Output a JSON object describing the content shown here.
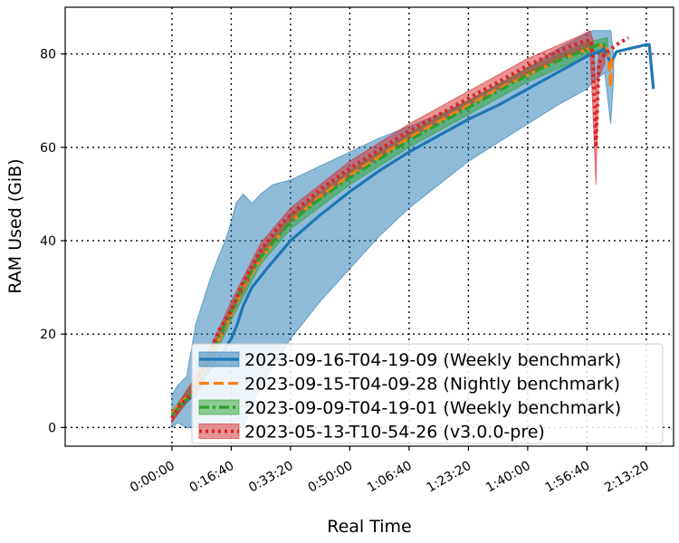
{
  "chart_data": {
    "type": "line",
    "xlabel": "Real Time",
    "ylabel": "RAM Used (GiB)",
    "x_unit": "seconds",
    "xlim": [
      -1800,
      8460
    ],
    "ylim": [
      -4,
      90
    ],
    "grid": true,
    "legend_position": "lower-right",
    "x_ticks": [
      {
        "value": 0,
        "label": "0:00:00"
      },
      {
        "value": 1000,
        "label": "0:16:40"
      },
      {
        "value": 2000,
        "label": "0:33:20"
      },
      {
        "value": 3000,
        "label": "0:50:00"
      },
      {
        "value": 4000,
        "label": "1:06:40"
      },
      {
        "value": 5000,
        "label": "1:23:20"
      },
      {
        "value": 6000,
        "label": "1:40:00"
      },
      {
        "value": 7000,
        "label": "1:56:40"
      },
      {
        "value": 8000,
        "label": "2:13:20"
      }
    ],
    "y_ticks": [
      0,
      20,
      40,
      60,
      80
    ],
    "series": [
      {
        "name": "2023-09-16-T04-19-09 (Weekly benchmark)",
        "color": "#1f77b4",
        "line_style": "solid",
        "points": [
          [
            0,
            3
          ],
          [
            150,
            5
          ],
          [
            400,
            7
          ],
          [
            550,
            11
          ],
          [
            800,
            15
          ],
          [
            1000,
            19
          ],
          [
            1100,
            22
          ],
          [
            1200,
            26
          ],
          [
            1350,
            30
          ],
          [
            1600,
            34
          ],
          [
            1800,
            37
          ],
          [
            2000,
            40
          ],
          [
            2500,
            45.5
          ],
          [
            3000,
            50.5
          ],
          [
            3500,
            55
          ],
          [
            4000,
            59
          ],
          [
            4500,
            62.5
          ],
          [
            5000,
            66
          ],
          [
            5500,
            69
          ],
          [
            6000,
            72.5
          ],
          [
            6500,
            76
          ],
          [
            7000,
            79.5
          ],
          [
            7300,
            81
          ],
          [
            7400,
            78
          ],
          [
            7500,
            80.5
          ],
          [
            8000,
            82
          ],
          [
            8050,
            82
          ],
          [
            8120,
            72.5
          ]
        ],
        "band": [
          [
            0,
            7,
            0
          ],
          [
            100,
            9,
            1
          ],
          [
            250,
            11,
            0
          ],
          [
            400,
            22,
            0
          ],
          [
            500,
            26,
            0
          ],
          [
            650,
            32,
            0
          ],
          [
            800,
            37,
            0
          ],
          [
            900,
            40,
            0
          ],
          [
            1000,
            44,
            0
          ],
          [
            1080,
            48,
            0
          ],
          [
            1200,
            50,
            0
          ],
          [
            1350,
            48,
            4
          ],
          [
            1500,
            50,
            9
          ],
          [
            1700,
            52,
            13
          ],
          [
            2000,
            53,
            19
          ],
          [
            2500,
            56,
            27
          ],
          [
            3000,
            59,
            34
          ],
          [
            3500,
            62,
            41
          ],
          [
            4000,
            64.5,
            47
          ],
          [
            4500,
            67,
            52
          ],
          [
            5000,
            70,
            57
          ],
          [
            5500,
            73.5,
            61
          ],
          [
            6000,
            77,
            65
          ],
          [
            6500,
            81,
            69
          ],
          [
            7000,
            84.5,
            72.5
          ],
          [
            7100,
            85,
            74
          ],
          [
            7300,
            85,
            76
          ],
          [
            7400,
            85,
            65
          ],
          [
            7450,
            80,
            75
          ]
        ]
      },
      {
        "name": "2023-09-15-T04-09-28 (Nightly benchmark)",
        "color": "#ff7f0e",
        "line_style": "dashed",
        "points": [
          [
            0,
            3
          ],
          [
            150,
            5.5
          ],
          [
            400,
            7.5
          ],
          [
            600,
            14
          ],
          [
            800,
            19
          ],
          [
            1000,
            24
          ],
          [
            1200,
            30
          ],
          [
            1500,
            36
          ],
          [
            1800,
            41
          ],
          [
            2000,
            44
          ],
          [
            2500,
            49.5
          ],
          [
            3000,
            54
          ],
          [
            3500,
            58
          ],
          [
            4000,
            62
          ],
          [
            4500,
            65.5
          ],
          [
            5000,
            69
          ],
          [
            5500,
            72.5
          ],
          [
            6000,
            75.5
          ],
          [
            6500,
            78.5
          ],
          [
            7000,
            81
          ],
          [
            7200,
            82
          ],
          [
            7350,
            81
          ],
          [
            7400,
            73
          ],
          [
            7420,
            80
          ]
        ]
      },
      {
        "name": "2023-09-09-T04-19-01 (Weekly benchmark)",
        "color": "#2ca02c",
        "line_style": "dashdot",
        "points": [
          [
            0,
            2.5
          ],
          [
            150,
            5
          ],
          [
            400,
            7.5
          ],
          [
            600,
            14
          ],
          [
            800,
            19.5
          ],
          [
            1000,
            24.5
          ],
          [
            1200,
            30.5
          ],
          [
            1500,
            36.5
          ],
          [
            1800,
            41
          ],
          [
            2000,
            44
          ],
          [
            2500,
            49
          ],
          [
            3000,
            53.5
          ],
          [
            3500,
            57.5
          ],
          [
            4000,
            61.5
          ],
          [
            4500,
            65
          ],
          [
            5000,
            68.5
          ],
          [
            5500,
            72
          ],
          [
            6000,
            75.5
          ],
          [
            6500,
            78.5
          ],
          [
            7000,
            81
          ],
          [
            7200,
            82
          ],
          [
            7350,
            82
          ]
        ],
        "band": [
          [
            0,
            3.5,
            1.5
          ],
          [
            500,
            12,
            9
          ],
          [
            1000,
            26,
            23
          ],
          [
            1500,
            38,
            35
          ],
          [
            2000,
            45.5,
            42.5
          ],
          [
            3000,
            55,
            52
          ],
          [
            4000,
            63,
            60
          ],
          [
            5000,
            70,
            67
          ],
          [
            6000,
            77,
            74
          ],
          [
            7000,
            82.5,
            79.5
          ],
          [
            7350,
            83.5,
            80.5
          ]
        ]
      },
      {
        "name": "2023-05-13-T10-54-26 (v3.0.0-pre)",
        "color": "#d62728",
        "line_style": "dotted",
        "points": [
          [
            0,
            2
          ],
          [
            150,
            5
          ],
          [
            400,
            8
          ],
          [
            600,
            15
          ],
          [
            800,
            21
          ],
          [
            1000,
            25
          ],
          [
            1200,
            31
          ],
          [
            1500,
            38
          ],
          [
            1800,
            43
          ],
          [
            2000,
            45.5
          ],
          [
            2500,
            51
          ],
          [
            3000,
            55.5
          ],
          [
            3500,
            59.5
          ],
          [
            4000,
            63.5
          ],
          [
            4500,
            67
          ],
          [
            5000,
            70.5
          ],
          [
            5500,
            74
          ],
          [
            6000,
            77.5
          ],
          [
            6500,
            80.5
          ],
          [
            6900,
            82.5
          ],
          [
            7050,
            83
          ],
          [
            7100,
            80
          ],
          [
            7150,
            60
          ],
          [
            7200,
            78
          ],
          [
            7300,
            80
          ],
          [
            7500,
            82
          ],
          [
            7700,
            83.5
          ]
        ],
        "band": [
          [
            0,
            3,
            1
          ],
          [
            500,
            13,
            10
          ],
          [
            1000,
            27,
            24
          ],
          [
            1500,
            39.5,
            36.5
          ],
          [
            2000,
            47,
            44
          ],
          [
            3000,
            57,
            54
          ],
          [
            4000,
            65,
            62
          ],
          [
            5000,
            72,
            69
          ],
          [
            6000,
            79,
            76
          ],
          [
            6900,
            84,
            81
          ],
          [
            7050,
            85,
            81
          ],
          [
            7100,
            83,
            68
          ],
          [
            7150,
            72,
            52
          ],
          [
            7200,
            80,
            75
          ],
          [
            7300,
            82,
            78
          ]
        ]
      }
    ]
  }
}
